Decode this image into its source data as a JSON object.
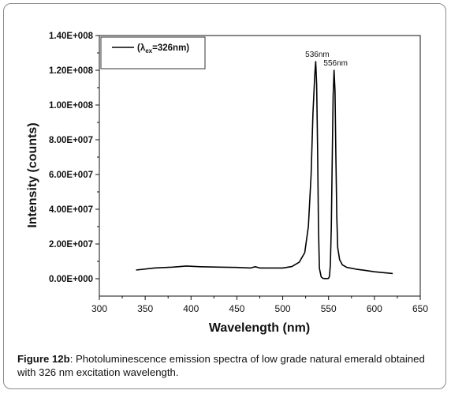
{
  "caption": {
    "label": "Figure 12b",
    "text": ": Photoluminescence emission spectra of low grade natural emerald obtained with 326 nm excitation wavelength."
  },
  "chart_data": {
    "type": "line",
    "xlabel": "Wavelength (nm)",
    "ylabel": "Intensity (counts)",
    "xlim": [
      300,
      650
    ],
    "ylim": [
      -10000000,
      140000000
    ],
    "x_ticks": [
      300,
      350,
      400,
      450,
      500,
      550,
      600,
      650
    ],
    "y_ticks": [
      0,
      20000000,
      40000000,
      60000000,
      80000000,
      100000000,
      120000000,
      140000000
    ],
    "y_tick_labels": [
      "0.00E+000",
      "2.00E+007",
      "4.00E+007",
      "6.00E+007",
      "8.00E+007",
      "1.00E+008",
      "1.20E+008",
      "1.40E+008"
    ],
    "legend": {
      "label": "(λex=326nm)",
      "base": "(λ",
      "sub": "ex",
      "tail": "=326nm)",
      "position": "top-left"
    },
    "annotations": [
      {
        "text": "536nm",
        "x": 536,
        "y": 125000000
      },
      {
        "text": "556nm",
        "x": 556,
        "y": 120000000
      }
    ],
    "series": [
      {
        "color": "#000000",
        "x": [
          340,
          360,
          380,
          395,
          410,
          430,
          450,
          465,
          470,
          475,
          480,
          500,
          510,
          518,
          524,
          528,
          531,
          533,
          535,
          536,
          537,
          538,
          539,
          540,
          542,
          544,
          546,
          548,
          550,
          551,
          552,
          553,
          554,
          555,
          556,
          557,
          558,
          559,
          560,
          562,
          565,
          570,
          580,
          590,
          600,
          610,
          620
        ],
        "y": [
          5000000,
          6200000,
          6700000,
          7300000,
          6900000,
          6700000,
          6500000,
          6200000,
          6900000,
          6200000,
          6200000,
          6200000,
          7000000,
          9500000,
          15000000,
          30000000,
          60000000,
          95000000,
          118000000,
          125000000,
          112000000,
          75000000,
          30000000,
          6000000,
          1000000,
          200000,
          100000,
          100000,
          200000,
          1500000,
          8000000,
          30000000,
          70000000,
          105000000,
          120000000,
          108000000,
          70000000,
          35000000,
          18000000,
          11000000,
          8000000,
          6500000,
          5500000,
          4800000,
          4000000,
          3500000,
          3000000
        ]
      }
    ],
    "grid": false
  }
}
